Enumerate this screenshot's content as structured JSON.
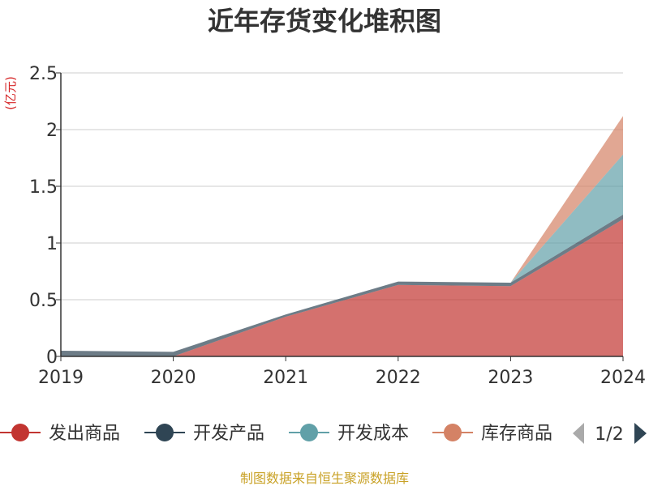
{
  "chart_data": {
    "type": "area",
    "stacked": true,
    "title": "近年存货变化堆积图",
    "ylabel": "(亿元)",
    "x": [
      "2019",
      "2020",
      "2021",
      "2022",
      "2023",
      "2024"
    ],
    "ylim": [
      0,
      2.5
    ],
    "yticks": [
      "0",
      "0.5",
      "1",
      "1.5",
      "2",
      "2.5"
    ],
    "grid": true,
    "series": [
      {
        "name": "发出商品",
        "color": "#c23531",
        "values": [
          0,
          0,
          0.35,
          0.63,
          0.62,
          1.21
        ]
      },
      {
        "name": "开发产品",
        "color": "#2f4554",
        "values": [
          0.05,
          0.04,
          0.02,
          0.03,
          0.03,
          0.04
        ]
      },
      {
        "name": "开发成本",
        "color": "#61a0a8",
        "values": [
          0,
          0,
          0,
          0,
          0,
          0.53
        ]
      },
      {
        "name": "库存商品",
        "color": "#d48265",
        "values": [
          0,
          0,
          0,
          0,
          0,
          0.34
        ]
      }
    ],
    "legend": {
      "placement": "bottom",
      "page": "1/2"
    }
  },
  "footer": {
    "source": "制图数据来自恒生聚源数据库"
  }
}
